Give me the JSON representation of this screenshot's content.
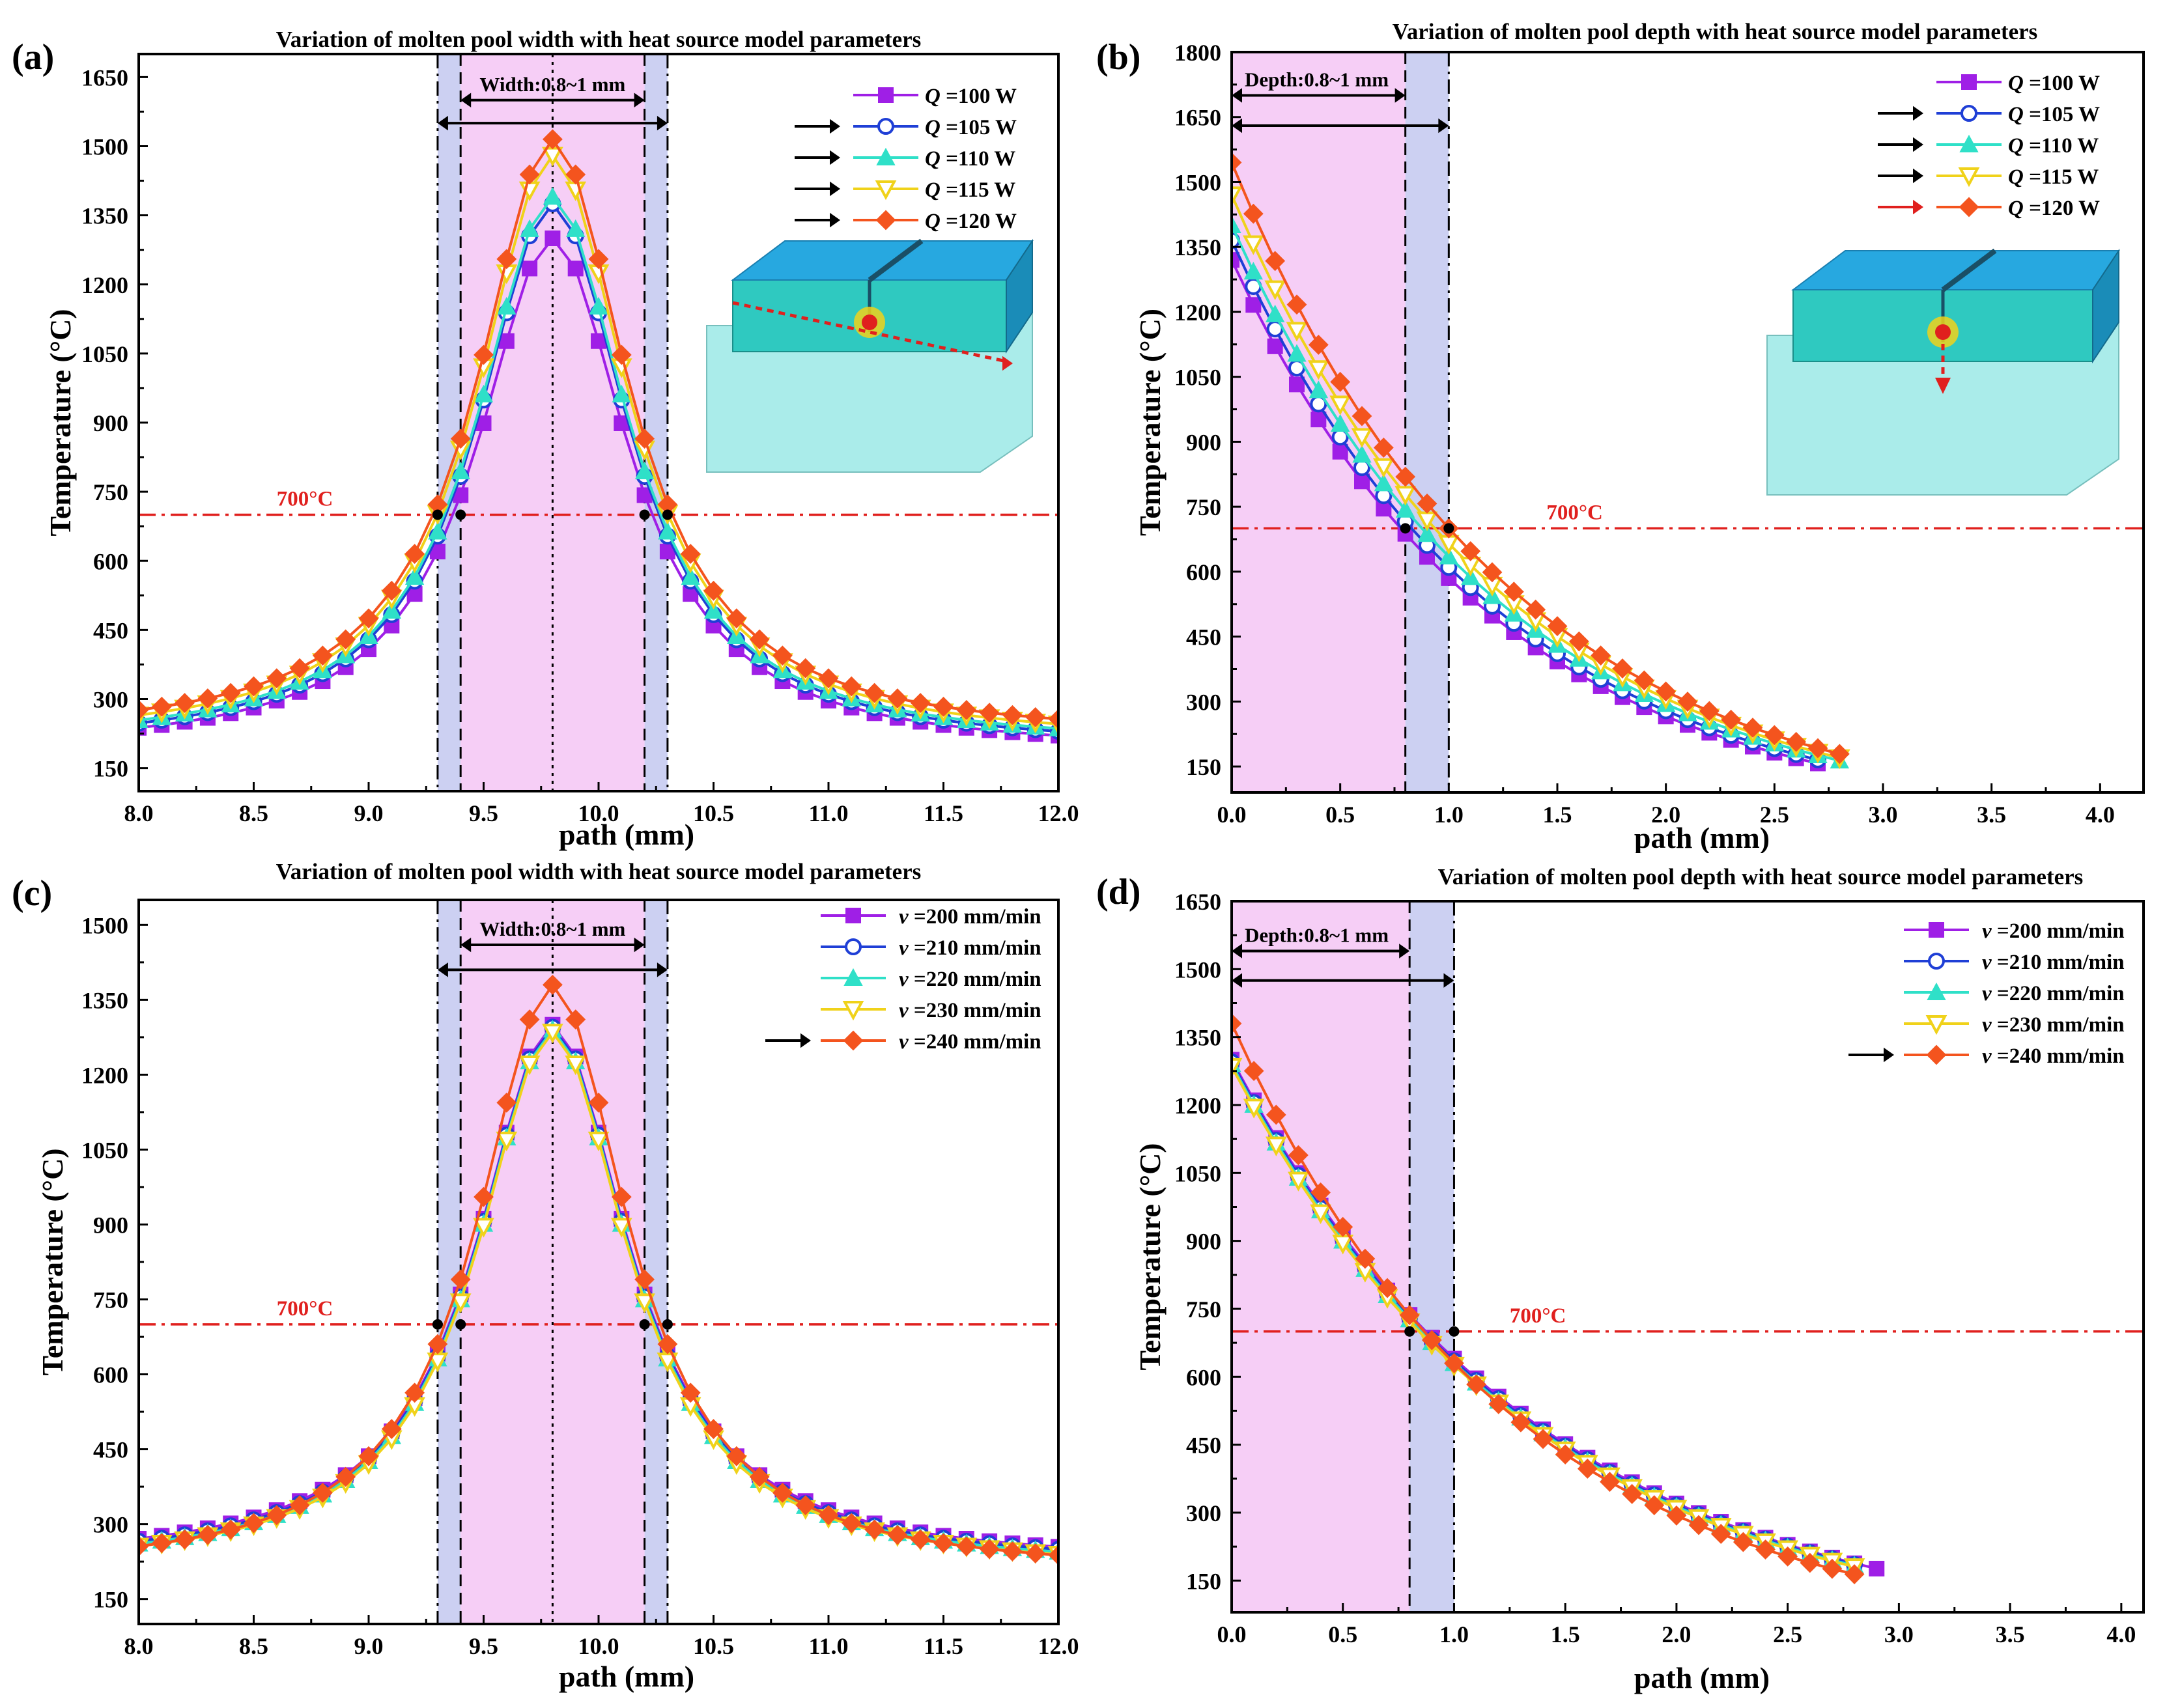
{
  "colors": {
    "pink_band": "#f4c6f5",
    "blue_band": "#c3c8f0",
    "threshold": "#e0201e",
    "axis": "#000000",
    "series": [
      "#9f1fe6",
      "#1f3fd6",
      "#2fe0c8",
      "#f0d21a",
      "#f4541e"
    ]
  },
  "chart_data": [
    {
      "panel": "(a)",
      "type": "line",
      "title": "Variation of molten pool width with heat source model parameters",
      "xlabel": "path (mm)",
      "ylabel": "Temperature (°C)",
      "xlim": [
        8.0,
        12.0
      ],
      "ylim": [
        100,
        1700
      ],
      "xticks": [
        8.0,
        8.5,
        9.0,
        9.5,
        10.0,
        10.5,
        11.0,
        11.5,
        12.0
      ],
      "xtick_labels": [
        "8.0",
        "8.5",
        "9.0",
        "9.5",
        "10.0",
        "10.5",
        "11.0",
        "11.5",
        "12.0"
      ],
      "yticks": [
        150,
        300,
        450,
        600,
        750,
        900,
        1050,
        1200,
        1350,
        1500,
        1650
      ],
      "ytick_labels": [
        "150",
        "300",
        "450",
        "600",
        "750",
        "900",
        "1050",
        "1200",
        "1350",
        "1500",
        "1650"
      ],
      "profile": "peak",
      "center": 9.8,
      "threshold": {
        "value": 700,
        "label": "700°C",
        "label_x": 8.6
      },
      "bands": [
        {
          "from": 9.3,
          "to": 9.4,
          "fill": "blue"
        },
        {
          "from": 9.4,
          "to": 10.2,
          "fill": "pink"
        },
        {
          "from": 10.2,
          "to": 10.3,
          "fill": "blue"
        }
      ],
      "vlines": [
        {
          "x": 9.3,
          "style": "dashdot"
        },
        {
          "x": 9.4,
          "style": "dash"
        },
        {
          "x": 9.8,
          "style": "dot"
        },
        {
          "x": 10.2,
          "style": "dash"
        },
        {
          "x": 10.3,
          "style": "dashdot"
        }
      ],
      "span_annotation": {
        "label": "Width:0.8~1 mm",
        "inner": [
          9.4,
          10.2
        ],
        "outer": [
          9.3,
          10.3
        ],
        "y_inner": 1600,
        "y_outer": 1550
      },
      "intersection_points": [
        [
          9.3,
          700
        ],
        [
          9.4,
          700
        ],
        [
          10.2,
          700
        ],
        [
          10.3,
          700
        ]
      ],
      "legend": {
        "position": "top-right",
        "var": "Q",
        "arrows": [
          false,
          true,
          true,
          true,
          true
        ],
        "arrow_colors": [
          "#000",
          "#000",
          "#000",
          "#000",
          "#000"
        ]
      },
      "series": [
        {
          "name": "Q =100 W",
          "var": "Q",
          "label_value": " =100 W",
          "marker": "square",
          "peak": 1300,
          "base": 185
        },
        {
          "name": "Q =105 W",
          "var": "Q",
          "label_value": " =105 W",
          "marker": "circle",
          "peak": 1375,
          "base": 192
        },
        {
          "name": "Q =110 W",
          "var": "Q",
          "label_value": " =110 W",
          "marker": "triangle",
          "peak": 1390,
          "base": 198
        },
        {
          "name": "Q =115 W",
          "var": "Q",
          "label_value": " =115 W",
          "marker": "triangle-down",
          "peak": 1480,
          "base": 205
        },
        {
          "name": "Q =120 W",
          "var": "Q",
          "label_value": " =120 W",
          "marker": "diamond",
          "peak": 1515,
          "base": 215
        }
      ]
    },
    {
      "panel": "(b)",
      "type": "line",
      "title": "Variation of molten pool depth with heat source model parameters",
      "xlabel": "path (mm)",
      "ylabel": "Temperature (°C)",
      "xlim": [
        0.0,
        4.2
      ],
      "ylim": [
        90,
        1800
      ],
      "xticks": [
        0.0,
        0.5,
        1.0,
        1.5,
        2.0,
        2.5,
        3.0,
        3.5,
        4.0
      ],
      "xtick_labels": [
        "0.0",
        "0.5",
        "1.0",
        "1.5",
        "2.0",
        "2.5",
        "3.0",
        "3.5",
        "4.0"
      ],
      "yticks": [
        150,
        300,
        450,
        600,
        750,
        900,
        1050,
        1200,
        1350,
        1500,
        1650,
        1800
      ],
      "ytick_labels": [
        "150",
        "300",
        "450",
        "600",
        "750",
        "900",
        "1050",
        "1200",
        "1350",
        "1500",
        "1650",
        "1800"
      ],
      "profile": "decay",
      "threshold": {
        "value": 700,
        "label": "700°C",
        "label_x": 1.45
      },
      "bands": [
        {
          "from": 0.0,
          "to": 0.8,
          "fill": "pink"
        },
        {
          "from": 0.8,
          "to": 1.0,
          "fill": "blue"
        }
      ],
      "vlines": [
        {
          "x": 0.8,
          "style": "dash"
        },
        {
          "x": 1.0,
          "style": "dashdot"
        }
      ],
      "span_annotation": {
        "label": "Depth:0.8~1 mm",
        "inner": [
          0.0,
          0.8
        ],
        "outer": [
          0.0,
          1.0
        ],
        "y_inner": 1700,
        "y_outer": 1630
      },
      "intersection_points": [
        [
          0.8,
          700
        ],
        [
          1.0,
          700
        ]
      ],
      "legend": {
        "position": "top-right",
        "var": "Q",
        "arrows": [
          false,
          true,
          true,
          true,
          true
        ],
        "arrow_colors": [
          "#000",
          "#000",
          "#000",
          "#000",
          "#e0201e"
        ]
      },
      "series": [
        {
          "name": "Q =100 W",
          "var": "Q",
          "label_value": " =100 W",
          "marker": "square",
          "start": 1320,
          "at1": 585,
          "end_x": 2.75
        },
        {
          "name": "Q =105 W",
          "var": "Q",
          "label_value": " =105 W",
          "marker": "circle",
          "start": 1365,
          "at1": 610,
          "end_x": 2.78
        },
        {
          "name": "Q =110 W",
          "var": "Q",
          "label_value": " =110 W",
          "marker": "triangle",
          "start": 1400,
          "at1": 635,
          "end_x": 2.8
        },
        {
          "name": "Q =115 W",
          "var": "Q",
          "label_value": " =115 W",
          "marker": "triangle-down",
          "start": 1470,
          "at1": 665,
          "end_x": 2.83
        },
        {
          "name": "Q =120 W",
          "var": "Q",
          "label_value": " =120 W",
          "marker": "diamond",
          "start": 1545,
          "at1": 700,
          "end_x": 2.87
        }
      ]
    },
    {
      "panel": "(c)",
      "type": "line",
      "title": "Variation of molten pool width with heat source model parameters",
      "xlabel": "path (mm)",
      "ylabel": "Temperature (°C)",
      "xlim": [
        8.0,
        12.0
      ],
      "ylim": [
        100,
        1550
      ],
      "xticks": [
        8.0,
        8.5,
        9.0,
        9.5,
        10.0,
        10.5,
        11.0,
        11.5,
        12.0
      ],
      "xtick_labels": [
        "8.0",
        "8.5",
        "9.0",
        "9.5",
        "10.0",
        "10.5",
        "11.0",
        "11.5",
        "12.0"
      ],
      "yticks": [
        150,
        300,
        450,
        600,
        750,
        900,
        1050,
        1200,
        1350,
        1500
      ],
      "ytick_labels": [
        "150",
        "300",
        "450",
        "600",
        "750",
        "900",
        "1050",
        "1200",
        "1350",
        "1500"
      ],
      "profile": "peak",
      "center": 9.8,
      "threshold": {
        "value": 700,
        "label": "700°C",
        "label_x": 8.6
      },
      "bands": [
        {
          "from": 9.3,
          "to": 9.4,
          "fill": "blue"
        },
        {
          "from": 9.4,
          "to": 10.2,
          "fill": "pink"
        },
        {
          "from": 10.2,
          "to": 10.3,
          "fill": "blue"
        }
      ],
      "vlines": [
        {
          "x": 9.3,
          "style": "dashdot"
        },
        {
          "x": 9.4,
          "style": "dash"
        },
        {
          "x": 9.8,
          "style": "dot"
        },
        {
          "x": 10.2,
          "style": "dash"
        },
        {
          "x": 10.3,
          "style": "dashdot"
        }
      ],
      "span_annotation": {
        "label": "Width:0.8~1 mm",
        "inner": [
          9.4,
          10.2
        ],
        "outer": [
          9.3,
          10.3
        ],
        "y_inner": 1460,
        "y_outer": 1410
      },
      "intersection_points": [
        [
          9.3,
          700
        ],
        [
          9.4,
          700
        ],
        [
          10.2,
          700
        ],
        [
          10.3,
          700
        ]
      ],
      "legend": {
        "position": "top-right",
        "var": "v",
        "arrows": [
          false,
          false,
          false,
          false,
          true
        ],
        "arrow_colors": [
          "#000",
          "#000",
          "#000",
          "#000",
          "#000"
        ]
      },
      "series": [
        {
          "name": "v =200 mm/min",
          "var": "v",
          "label_value": " =200 mm/min",
          "marker": "square",
          "peak": 1300,
          "base": 220
        },
        {
          "name": "v =210 mm/min",
          "var": "v",
          "label_value": " =210 mm/min",
          "marker": "circle",
          "peak": 1295,
          "base": 215
        },
        {
          "name": "v =220 mm/min",
          "var": "v",
          "label_value": " =220 mm/min",
          "marker": "triangle",
          "peak": 1290,
          "base": 210
        },
        {
          "name": "v =230 mm/min",
          "var": "v",
          "label_value": " =230 mm/min",
          "marker": "triangle-down",
          "peak": 1285,
          "base": 205
        },
        {
          "name": "v =240 mm/min",
          "var": "v",
          "label_value": " =240 mm/min",
          "marker": "diamond",
          "peak": 1380,
          "base": 200
        }
      ]
    },
    {
      "panel": "(d)",
      "type": "line",
      "title": "Variation of molten pool depth with heat source model parameters",
      "xlabel": "path (mm)",
      "ylabel": "Temperature (°C)",
      "xlim": [
        0.0,
        4.1
      ],
      "ylim": [
        80,
        1650
      ],
      "xticks": [
        0.0,
        0.5,
        1.0,
        1.5,
        2.0,
        2.5,
        3.0,
        3.5,
        4.0
      ],
      "xtick_labels": [
        "0.0",
        "0.5",
        "1.0",
        "1.5",
        "2.0",
        "2.5",
        "3.0",
        "3.5",
        "4.0"
      ],
      "yticks": [
        150,
        300,
        450,
        600,
        750,
        900,
        1050,
        1200,
        1350,
        1500,
        1650
      ],
      "ytick_labels": [
        "150",
        "300",
        "450",
        "600",
        "750",
        "900",
        "1050",
        "1200",
        "1350",
        "1500",
        "1650"
      ],
      "profile": "decay",
      "threshold": {
        "value": 700,
        "label": "700°C",
        "label_x": 1.25
      },
      "bands": [
        {
          "from": 0.0,
          "to": 0.8,
          "fill": "pink"
        },
        {
          "from": 0.8,
          "to": 1.0,
          "fill": "blue"
        }
      ],
      "vlines": [
        {
          "x": 0.8,
          "style": "dash"
        },
        {
          "x": 1.0,
          "style": "dashdot"
        }
      ],
      "span_annotation": {
        "label": "Depth:0.8~1 mm",
        "inner": [
          0.0,
          0.8
        ],
        "outer": [
          0.0,
          1.0
        ],
        "y_inner": 1540,
        "y_outer": 1475
      },
      "intersection_points": [
        [
          0.8,
          700
        ],
        [
          1.0,
          700
        ]
      ],
      "legend": {
        "position": "top-right",
        "var": "v",
        "arrows": [
          false,
          false,
          false,
          false,
          true
        ],
        "arrow_colors": [
          "#000",
          "#000",
          "#000",
          "#000",
          "#000"
        ]
      },
      "series": [
        {
          "name": "v =200 mm/min",
          "var": "v",
          "label_value": " =200 mm/min",
          "marker": "square",
          "start": 1300,
          "at1": 640,
          "end_x": 2.9
        },
        {
          "name": "v =210 mm/min",
          "var": "v",
          "label_value": " =210 mm/min",
          "marker": "circle",
          "start": 1295,
          "at1": 635,
          "end_x": 2.88
        },
        {
          "name": "v =220 mm/min",
          "var": "v",
          "label_value": " =220 mm/min",
          "marker": "triangle",
          "start": 1290,
          "at1": 630,
          "end_x": 2.87
        },
        {
          "name": "v =230 mm/min",
          "var": "v",
          "label_value": " =230 mm/min",
          "marker": "triangle-down",
          "start": 1285,
          "at1": 625,
          "end_x": 2.86
        },
        {
          "name": "v =240 mm/min",
          "var": "v",
          "label_value": " =240 mm/min",
          "marker": "diamond",
          "start": 1380,
          "at1": 630,
          "end_x": 2.84
        }
      ]
    }
  ]
}
